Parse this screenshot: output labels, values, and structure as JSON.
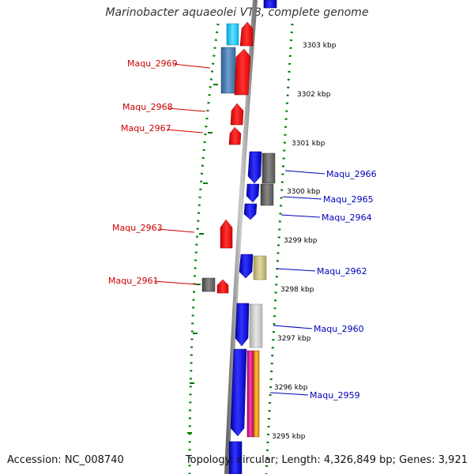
{
  "title": "Marinobacter aquaeolei VT8, complete genome",
  "accession": "Accession: NC_008740",
  "topology": "Topology: circular; Length: 4,326,849 bp; Genes: 3,921",
  "colors": {
    "forward_label": "#cc0000",
    "reverse_label": "#0000bb",
    "tick": "#007700",
    "backbone": "#888888"
  },
  "scale_ticks": [
    "3303 kbp",
    "3302 kbp",
    "3301 kbp",
    "3300 kbp",
    "3299 kbp",
    "3298 kbp",
    "3297 kbp",
    "3296 kbp",
    "3295 kbp"
  ],
  "left_genes": [
    "Maqu_2969",
    "Maqu_2968",
    "Maqu_2967",
    "Maqu_2963",
    "Maqu_2961"
  ],
  "right_genes": [
    "Maqu_2966",
    "Maqu_2965",
    "Maqu_2964",
    "Maqu_2962",
    "Maqu_2960",
    "Maqu_2959"
  ]
}
